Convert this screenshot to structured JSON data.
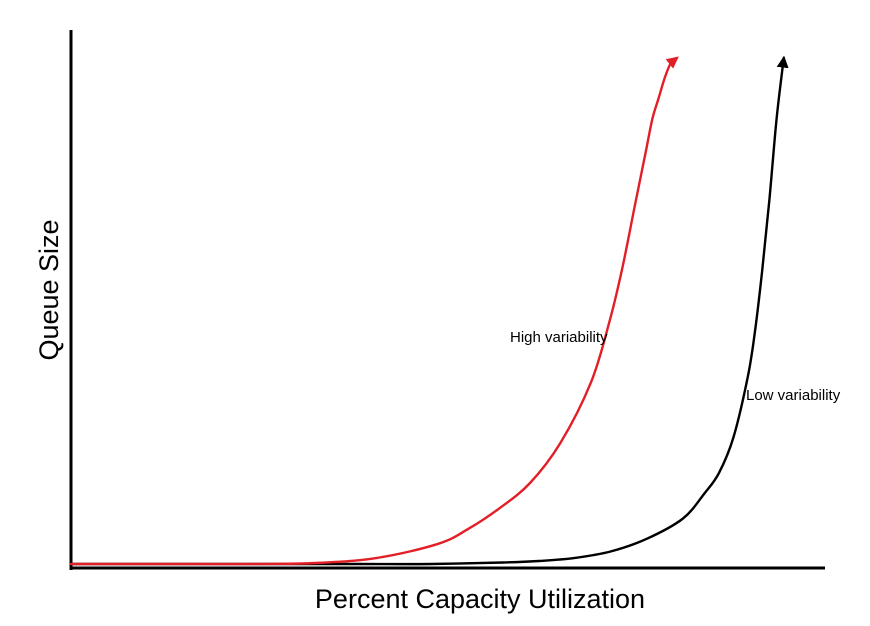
{
  "chart_data": {
    "type": "line",
    "xlabel": "Percent Capacity Utilization",
    "ylabel": "Queue Size",
    "grid": false,
    "x_ticks_shown": false,
    "y_ticks_shown": false,
    "x": [
      0,
      10,
      20,
      30,
      40,
      50,
      60,
      65,
      70,
      75,
      80,
      85,
      88,
      90,
      92,
      94,
      95,
      96,
      97,
      98,
      99
    ],
    "series": [
      {
        "name": "High variability",
        "color": "#e21f26",
        "values": [
          0,
          0,
          0,
          0,
          0.2,
          1.2,
          4,
          7,
          11,
          16,
          24,
          36,
          48,
          58,
          70,
          82,
          88,
          92,
          96,
          99,
          100
        ]
      },
      {
        "name": "Low variability",
        "color": "#000000",
        "values": [
          0,
          0,
          0,
          0,
          0,
          0,
          0.3,
          0.6,
          1.2,
          2.5,
          5,
          9,
          14,
          18,
          25,
          37,
          46,
          58,
          72,
          88,
          100
        ]
      }
    ]
  }
}
